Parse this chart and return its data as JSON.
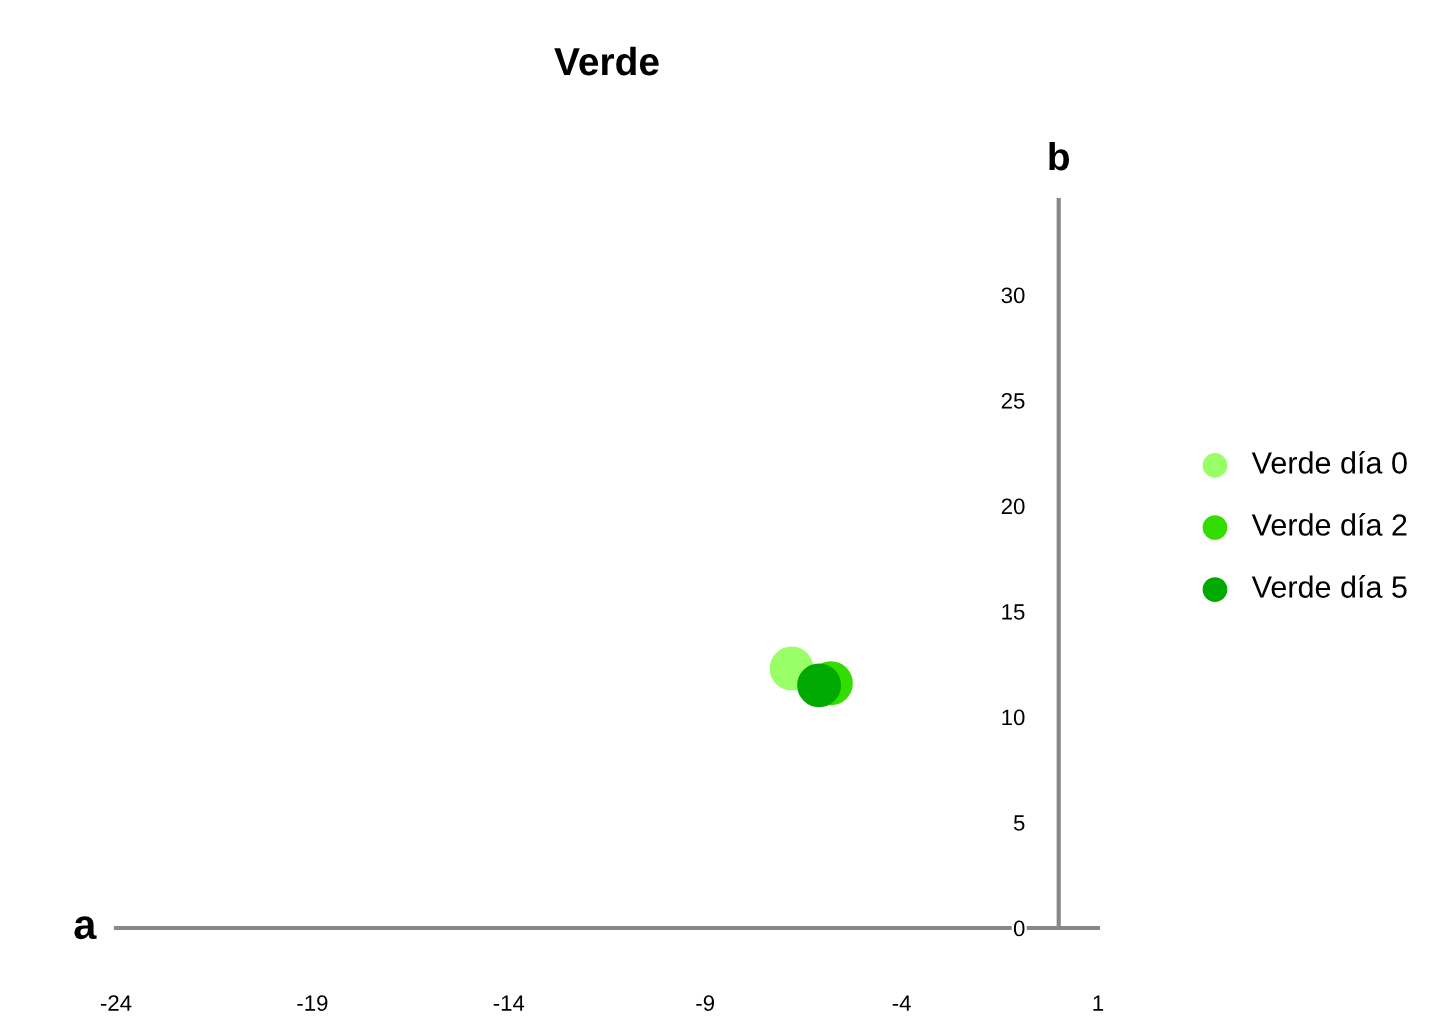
{
  "chart_data": {
    "type": "scatter",
    "title": "Verde",
    "xlabel": "a",
    "ylabel": "b",
    "xlim": [
      -24,
      1
    ],
    "xticks": [
      -24,
      -19,
      -14,
      -9,
      -4,
      1
    ],
    "ylim": [
      0,
      34.5
    ],
    "yticks": [
      0,
      5,
      10,
      15,
      20,
      25,
      30
    ],
    "marker": "circle",
    "grid": false,
    "legend": "right",
    "series": [
      {
        "name": "Verde día 0",
        "color": "#99ff66",
        "x": [
          -6.8
        ],
        "values": [
          12.3
        ]
      },
      {
        "name": "Verde día 2",
        "color": "#33dd00",
        "x": [
          -5.8
        ],
        "values": [
          11.6
        ]
      },
      {
        "name": "Verde día 5",
        "color": "#00aa00",
        "x": [
          -6.1
        ],
        "values": [
          11.5
        ]
      }
    ]
  }
}
